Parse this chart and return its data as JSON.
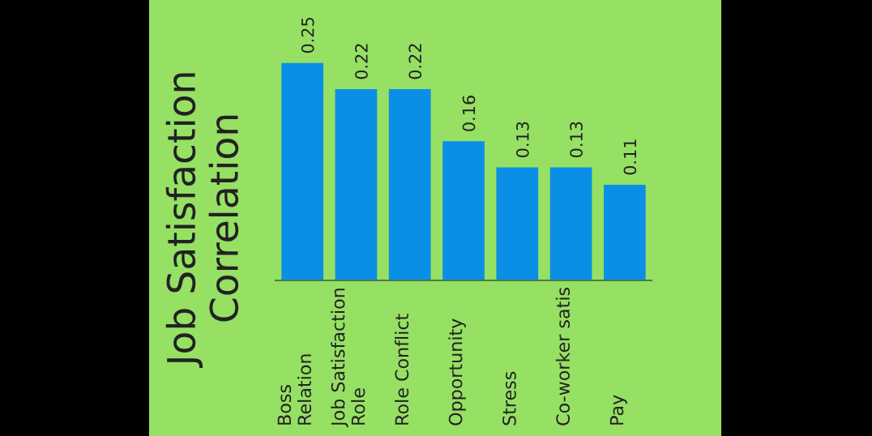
{
  "chart_data": {
    "type": "bar",
    "ylabel": "Job Satisfaction\nCorrelation",
    "categories": [
      "Boss\nRelation",
      "Job Satisfaction\nRole",
      "Role Conflict",
      "Opportunity",
      "Stress",
      "Co-worker satis",
      "Pay"
    ],
    "values": [
      0.25,
      0.22,
      0.22,
      0.16,
      0.13,
      0.13,
      0.11
    ],
    "color": "#0a8fe6",
    "data_labels": true
  }
}
